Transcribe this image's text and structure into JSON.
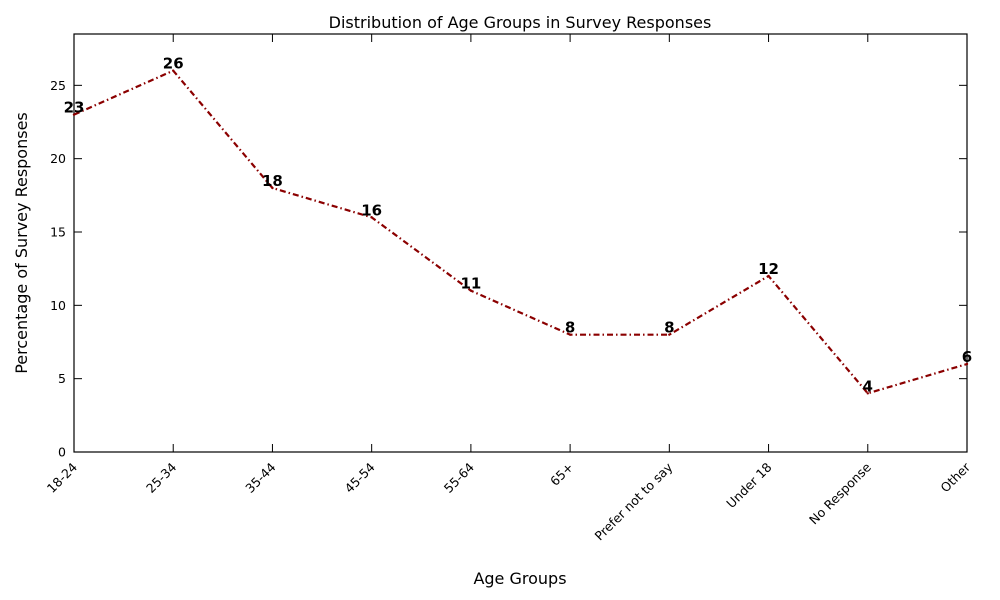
{
  "chart_data": {
    "type": "line",
    "title": "Distribution of Age Groups in Survey Responses",
    "xlabel": "Age Groups",
    "ylabel": "Percentage of Survey Responses",
    "categories": [
      "18-24",
      "25-34",
      "35-44",
      "45-54",
      "55-64",
      "65+",
      "Prefer not to say",
      "Under 18",
      "No Response",
      "Other"
    ],
    "series": [
      {
        "values": [
          23,
          26,
          18,
          16,
          11,
          8,
          8,
          12,
          4,
          6
        ]
      }
    ],
    "ylim": [
      0,
      28.5
    ],
    "yticks": [
      0,
      5,
      10,
      15,
      20,
      25
    ],
    "line_color": "#8b0000",
    "line_style": "dash-dot",
    "data_labels": true,
    "grid": false,
    "legend": "none"
  }
}
